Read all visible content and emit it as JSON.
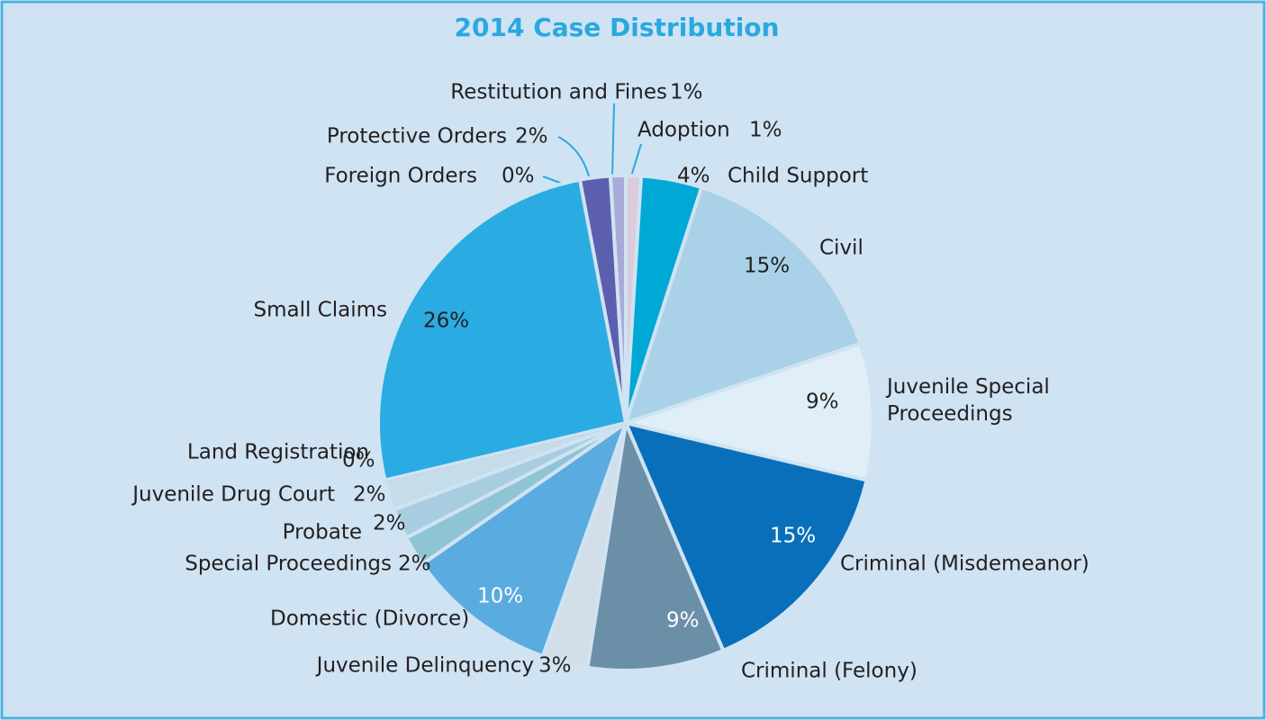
{
  "chart_data": {
    "type": "pie",
    "title": "2014 Case Distribution",
    "categories": [
      "Adoption",
      "Child Support",
      "Civil",
      "Juvenile Special Proceedings",
      "Criminal (Misdemeanor)",
      "Criminal (Felony)",
      "Juvenile Delinquency",
      "Domestic (Divorce)",
      "Special Proceedings",
      "Probate",
      "Juvenile Drug Court",
      "Land Registration",
      "Small Claims",
      "Foreign Orders",
      "Protective Orders",
      "Restitution and Fines"
    ],
    "values": [
      1,
      4,
      15,
      9,
      15,
      9,
      3,
      10,
      2,
      2,
      2,
      0,
      26,
      0,
      2,
      1
    ],
    "value_labels": [
      "1%",
      "4%",
      "15%",
      "9%",
      "15%",
      "9%",
      "3%",
      "10%",
      "2%",
      "2%",
      "2%",
      "0%",
      "26%",
      "0%",
      "2%",
      "1%"
    ],
    "colors": [
      "#dccbdc",
      "#00a8d6",
      "#a9d2e8",
      "#e0eef7",
      "#0a6fba",
      "#6c8fa8",
      "#d2dee8",
      "#5aabe0",
      "#8fc4d4",
      "#a9cde0",
      "#c5dce9",
      "#5a5fa8",
      "#2aace2",
      "#4a4f9a",
      "#5b5fae",
      "#aaaad8"
    ]
  }
}
